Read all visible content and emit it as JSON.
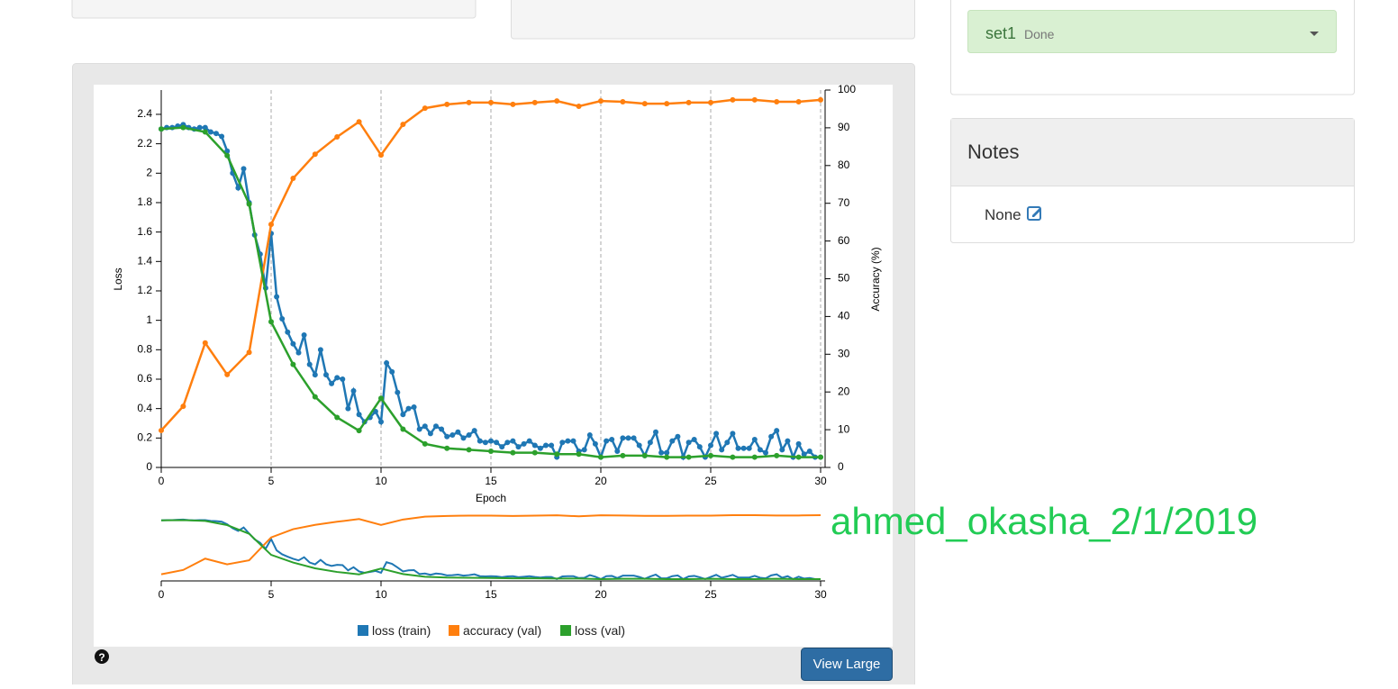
{
  "ui": {
    "dropdown": {
      "label": "set1",
      "status": "Done"
    },
    "notes": {
      "title": "Notes",
      "text": "None"
    },
    "button": "View Large",
    "watermark": "ahmed_okasha_2/1/2019"
  },
  "chart_data": {
    "type": "line",
    "x_label": "Epoch",
    "y_label": "Loss",
    "y2_label": "Accuracy (%)",
    "xlim": [
      0,
      30
    ],
    "xticks": [
      0,
      5,
      10,
      15,
      20,
      25,
      30
    ],
    "ylim": [
      0,
      2.565
    ],
    "yticks": [
      0,
      0.2,
      0.4,
      0.6,
      0.8,
      1,
      1.2,
      1.4,
      1.6,
      1.8,
      2,
      2.2,
      2.4
    ],
    "y2lim": [
      0,
      100
    ],
    "y2ticks": [
      0,
      10,
      20,
      30,
      40,
      50,
      60,
      70,
      80,
      90,
      100
    ],
    "grid": true,
    "series": [
      {
        "name": "loss (train)",
        "color": "#1f77b4",
        "x": [
          0,
          0.25,
          0.5,
          0.75,
          1,
          1.25,
          1.5,
          1.75,
          2,
          2.25,
          2.5,
          2.75,
          3,
          3.25,
          3.5,
          3.75,
          4,
          4.25,
          4.5,
          4.75,
          5,
          5.25,
          5.5,
          5.75,
          6,
          6.25,
          6.5,
          6.75,
          7,
          7.25,
          7.5,
          7.75,
          8,
          8.25,
          8.5,
          8.75,
          9,
          9.25,
          9.5,
          9.75,
          10,
          10.25,
          10.5,
          10.75,
          11,
          11.25,
          11.5,
          11.75,
          12,
          12.25,
          12.5,
          12.75,
          13,
          13.25,
          13.5,
          13.75,
          14,
          14.25,
          14.5,
          14.75,
          15,
          15.25,
          15.5,
          15.75,
          16,
          16.25,
          16.5,
          16.75,
          17,
          17.25,
          17.5,
          17.75,
          18,
          18.25,
          18.5,
          18.75,
          19,
          19.25,
          19.5,
          19.75,
          20,
          20.25,
          20.5,
          20.75,
          21,
          21.25,
          21.5,
          21.75,
          22,
          22.25,
          22.5,
          22.75,
          23,
          23.25,
          23.5,
          23.75,
          24,
          24.25,
          24.5,
          24.75,
          25,
          25.25,
          25.5,
          25.75,
          26,
          26.25,
          26.5,
          26.75,
          27,
          27.25,
          27.5,
          27.75,
          28,
          28.25,
          28.5,
          28.75,
          29,
          29.25,
          29.5,
          29.75,
          30
        ],
        "values": [
          2.3,
          2.31,
          2.31,
          2.32,
          2.33,
          2.31,
          2.3,
          2.31,
          2.31,
          2.28,
          2.27,
          2.25,
          2.15,
          2.0,
          1.9,
          2.03,
          1.8,
          1.58,
          1.45,
          1.22,
          1.59,
          1.16,
          1.01,
          0.92,
          0.84,
          0.78,
          0.9,
          0.7,
          0.63,
          0.8,
          0.63,
          0.57,
          0.61,
          0.6,
          0.4,
          0.52,
          0.36,
          0.31,
          0.34,
          0.38,
          0.31,
          0.71,
          0.65,
          0.51,
          0.36,
          0.4,
          0.41,
          0.26,
          0.28,
          0.23,
          0.28,
          0.26,
          0.21,
          0.22,
          0.24,
          0.2,
          0.22,
          0.25,
          0.18,
          0.17,
          0.18,
          0.17,
          0.14,
          0.17,
          0.18,
          0.14,
          0.16,
          0.18,
          0.15,
          0.13,
          0.15,
          0.15,
          0.07,
          0.17,
          0.18,
          0.18,
          0.11,
          0.12,
          0.22,
          0.16,
          0.07,
          0.18,
          0.19,
          0.11,
          0.2,
          0.2,
          0.2,
          0.15,
          0.08,
          0.17,
          0.24,
          0.1,
          0.1,
          0.18,
          0.21,
          0.07,
          0.17,
          0.19,
          0.14,
          0.07,
          0.15,
          0.23,
          0.12,
          0.17,
          0.23,
          0.13,
          0.13,
          0.13,
          0.19,
          0.12,
          0.1,
          0.21,
          0.25,
          0.12,
          0.18,
          0.07,
          0.16,
          0.09,
          0.11,
          0.07,
          0.07
        ]
      },
      {
        "name": "accuracy (val)",
        "color": "#ff7f0e",
        "axis": "y2",
        "x": [
          0,
          1,
          2,
          3,
          4,
          5,
          6,
          7,
          8,
          9,
          10,
          11,
          12,
          13,
          14,
          15,
          16,
          17,
          18,
          19,
          20,
          21,
          22,
          23,
          24,
          25,
          26,
          27,
          28,
          29,
          30
        ],
        "values": [
          9.8,
          16.2,
          33,
          24.6,
          30.5,
          64.4,
          76.6,
          83,
          87.6,
          91.6,
          82.8,
          90.9,
          95.2,
          96.2,
          96.7,
          96.7,
          96.2,
          96.7,
          97.1,
          95.7,
          97.1,
          96.9,
          96.4,
          96.4,
          96.7,
          96.7,
          97.4,
          97.4,
          96.9,
          96.9,
          97.4
        ]
      },
      {
        "name": "loss (val)",
        "color": "#2ca02c",
        "x": [
          0,
          1,
          2,
          3,
          4,
          5,
          6,
          7,
          8,
          9,
          10,
          11,
          12,
          13,
          14,
          15,
          16,
          17,
          18,
          19,
          20,
          21,
          22,
          23,
          24,
          25,
          26,
          27,
          28,
          29,
          30
        ],
        "values": [
          2.3,
          2.31,
          2.28,
          2.12,
          1.79,
          0.99,
          0.7,
          0.48,
          0.34,
          0.25,
          0.47,
          0.26,
          0.16,
          0.13,
          0.12,
          0.11,
          0.1,
          0.1,
          0.09,
          0.09,
          0.07,
          0.08,
          0.08,
          0.07,
          0.07,
          0.08,
          0.07,
          0.07,
          0.08,
          0.07,
          0.07
        ]
      }
    ]
  }
}
